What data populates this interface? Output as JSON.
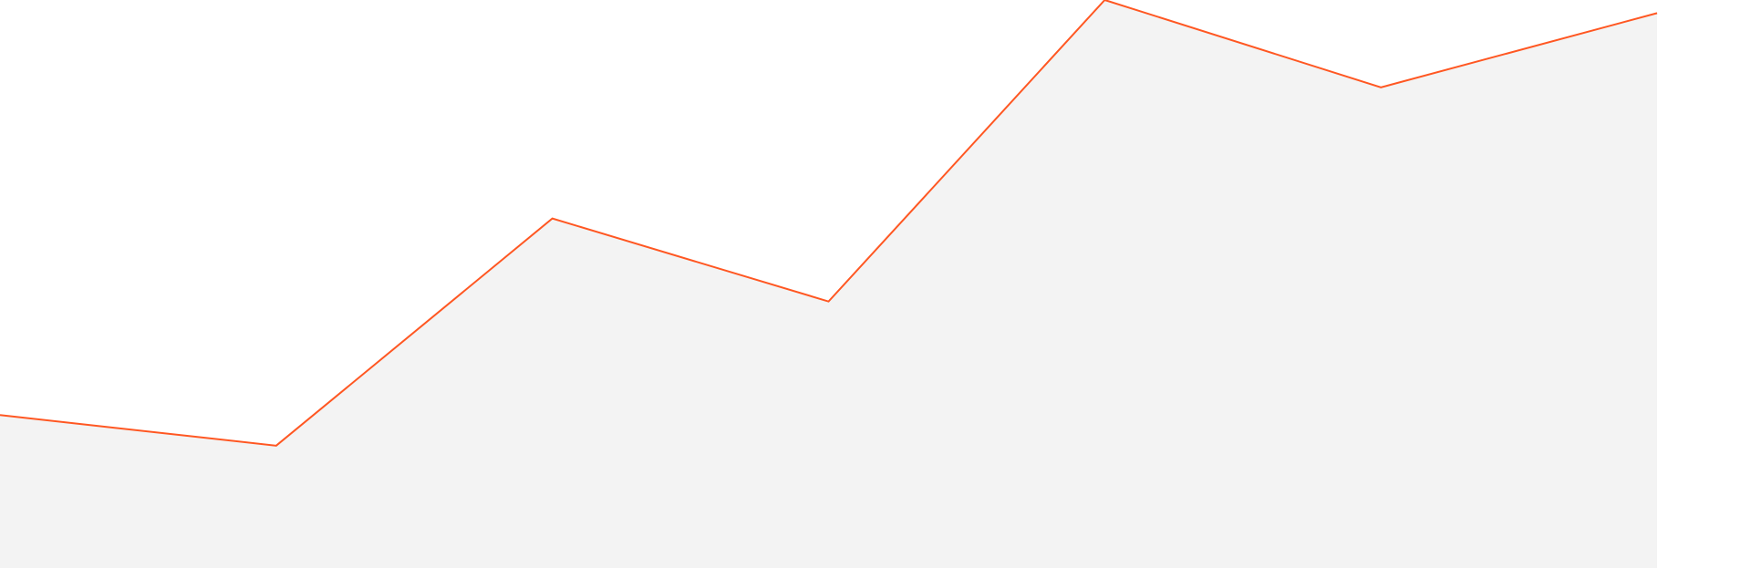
{
  "chart_data": {
    "type": "area",
    "x": [
      0,
      1,
      2,
      3,
      4,
      5,
      6
    ],
    "series": [
      {
        "values": [
          0.3,
          0.23,
          0.75,
          0.56,
          1.25,
          1.05,
          1.22
        ]
      }
    ],
    "xlim": [
      0,
      6.34
    ],
    "ylim": [
      -0.05,
      1.25
    ],
    "grid": false,
    "legend": "none",
    "colors": {
      "line": "#ff5722",
      "area": "#f3f3f3",
      "background": "#ffffff"
    }
  }
}
